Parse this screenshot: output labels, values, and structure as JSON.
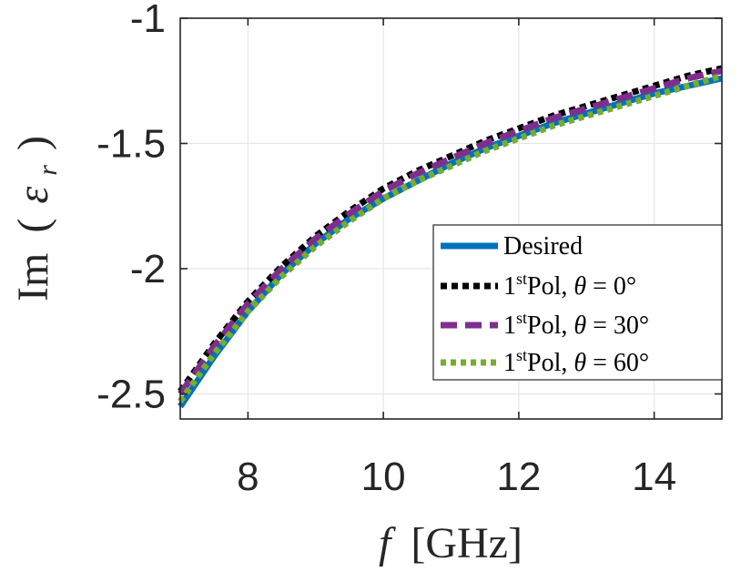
{
  "chart_data": {
    "type": "line",
    "xlabel": {
      "var": "f",
      "unit": "[GHz]"
    },
    "ylabel": {
      "pre": "Im",
      "open": "(",
      "sym": "ε",
      "sub": "r",
      "close": ")"
    },
    "xlim": [
      7,
      15
    ],
    "ylim": [
      -2.6,
      -1
    ],
    "xticks": [
      8,
      10,
      12,
      14
    ],
    "yticks": [
      -2.5,
      -2,
      -1.5,
      -1
    ],
    "ytick_labels": [
      "-2.5",
      "-2",
      "-1.5",
      "-1"
    ],
    "grid": true,
    "legend_position": "lower-right",
    "x": [
      7,
      7.5,
      8,
      8.5,
      9,
      9.5,
      10,
      10.5,
      11,
      11.5,
      12,
      12.5,
      13,
      13.5,
      14,
      14.5,
      15
    ],
    "series": [
      {
        "legend": {
          "text": "Desired"
        },
        "color": "#0072bd",
        "style": "solid",
        "values": [
          -2.55,
          -2.35,
          -2.17,
          -2.02,
          -1.9,
          -1.8,
          -1.72,
          -1.65,
          -1.58,
          -1.52,
          -1.47,
          -1.42,
          -1.38,
          -1.34,
          -1.3,
          -1.27,
          -1.24
        ]
      },
      {
        "legend": {
          "base": "1",
          "sup": "st",
          "rest": "Pol, ",
          "theta": "θ",
          "eq": " = 0°"
        },
        "color": "#000000",
        "style": "dash-dot",
        "values": [
          -2.49,
          -2.3,
          -2.13,
          -1.99,
          -1.87,
          -1.77,
          -1.68,
          -1.61,
          -1.55,
          -1.49,
          -1.44,
          -1.39,
          -1.35,
          -1.31,
          -1.27,
          -1.23,
          -1.2
        ]
      },
      {
        "legend": {
          "base": "1",
          "sup": "st",
          "rest": "Pol, ",
          "theta": "θ",
          "eq": " = 30°"
        },
        "color": "#7e2f8e",
        "style": "dashed",
        "values": [
          -2.5,
          -2.31,
          -2.14,
          -2.0,
          -1.88,
          -1.78,
          -1.69,
          -1.62,
          -1.56,
          -1.5,
          -1.45,
          -1.4,
          -1.36,
          -1.32,
          -1.28,
          -1.24,
          -1.21
        ]
      },
      {
        "legend": {
          "base": "1",
          "sup": "st",
          "rest": "Pol, ",
          "theta": "θ",
          "eq": " = 60°"
        },
        "color": "#77ac30",
        "style": "dotted",
        "values": [
          -2.53,
          -2.34,
          -2.17,
          -2.03,
          -1.91,
          -1.81,
          -1.72,
          -1.65,
          -1.59,
          -1.53,
          -1.48,
          -1.43,
          -1.39,
          -1.35,
          -1.31,
          -1.27,
          -1.23
        ]
      }
    ]
  }
}
